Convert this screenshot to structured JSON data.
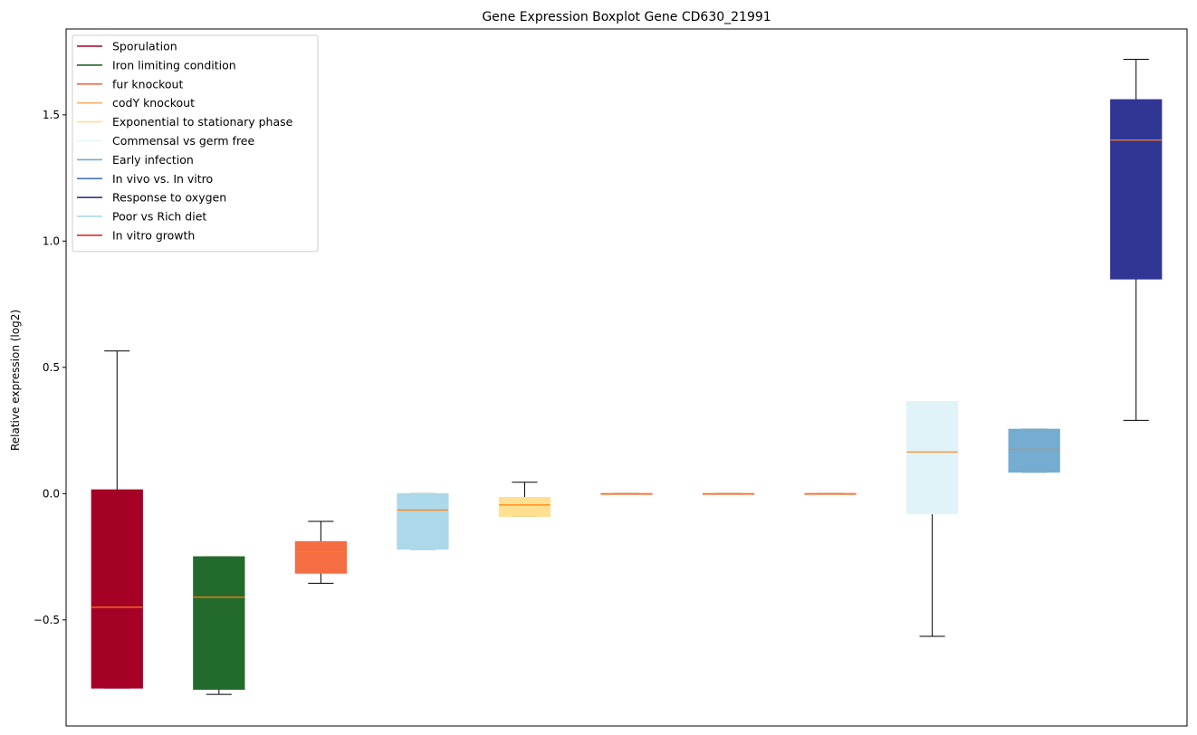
{
  "chart_data": {
    "type": "box",
    "title": "Gene Expression Boxplot Gene CD630_21991",
    "xlabel": "",
    "ylabel": "Relative expression (log2)",
    "ylim": [
      -0.92,
      1.84
    ],
    "yticks": [
      -0.5,
      0.0,
      0.5,
      1.0,
      1.5
    ],
    "ytick_labels": [
      "−0.5",
      "0.0",
      "0.5",
      "1.0",
      "1.5"
    ],
    "grid": false,
    "legend_position": "top-left",
    "legend": [
      {
        "label": "Sporulation",
        "color": "#a50026"
      },
      {
        "label": "Iron limiting condition",
        "color": "#236b2c"
      },
      {
        "label": "fur knockout",
        "color": "#f46d43"
      },
      {
        "label": "codY knockout",
        "color": "#fdae61"
      },
      {
        "label": "Exponential to stationary phase",
        "color": "#fee090"
      },
      {
        "label": "Commensal vs germ free",
        "color": "#e0f3f8"
      },
      {
        "label": "Early infection",
        "color": "#74add1"
      },
      {
        "label": "In vivo vs. In vitro",
        "color": "#4575b4"
      },
      {
        "label": "Response to oxygen",
        "color": "#313695"
      },
      {
        "label": "Poor vs Rich diet",
        "color": "#abd9e9"
      },
      {
        "label": "In vitro growth",
        "color": "#e41a1c"
      }
    ],
    "boxes": [
      {
        "color": "#a50026",
        "whislo": -0.77,
        "q1": -0.77,
        "median": -0.45,
        "q3": 0.015,
        "whishi": 0.565
      },
      {
        "color": "#236b2c",
        "whislo": -0.795,
        "q1": -0.775,
        "median": -0.41,
        "q3": -0.25,
        "whishi": -0.25
      },
      {
        "color": "#f46d43",
        "whislo": -0.355,
        "q1": -0.315,
        "median": -0.23,
        "q3": -0.19,
        "whishi": -0.11
      },
      {
        "color": "#abd9e9",
        "whislo": -0.22,
        "q1": -0.22,
        "median": -0.065,
        "q3": 0.0,
        "whishi": 0.0
      },
      {
        "color": "#fee090",
        "whislo": -0.09,
        "q1": -0.09,
        "median": -0.045,
        "q3": -0.015,
        "whishi": 0.045
      },
      {
        "color": "#f46d43",
        "whislo": 0.0,
        "q1": 0.0,
        "median": 0.0,
        "q3": 0.0,
        "whishi": 0.0
      },
      {
        "color": "#f46d43",
        "whislo": 0.0,
        "q1": 0.0,
        "median": 0.0,
        "q3": 0.0,
        "whishi": 0.0
      },
      {
        "color": "#f46d43",
        "whislo": 0.0,
        "q1": 0.0,
        "median": 0.0,
        "q3": 0.0,
        "whishi": 0.0
      },
      {
        "color": "#e0f3f8",
        "whislo": -0.565,
        "q1": -0.08,
        "median": 0.165,
        "q3": 0.365,
        "whishi": 0.365
      },
      {
        "color": "#74add1",
        "whislo": 0.085,
        "q1": 0.085,
        "median": 0.175,
        "q3": 0.255,
        "whishi": 0.255
      },
      {
        "color": "#313695",
        "whislo": 0.29,
        "q1": 0.85,
        "median": 1.4,
        "q3": 1.56,
        "whishi": 1.72
      }
    ],
    "median_color": "#ff7f0e"
  }
}
